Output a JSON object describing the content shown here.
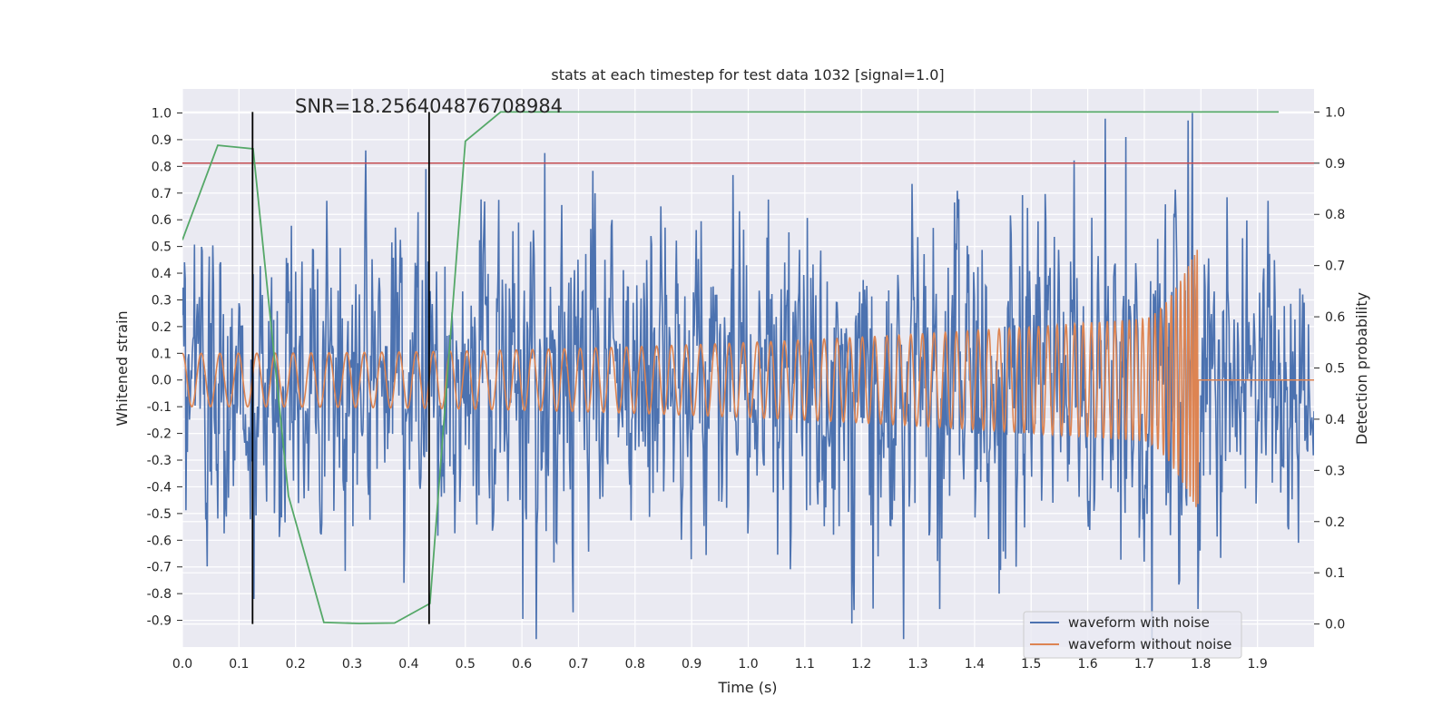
{
  "chart_data": {
    "type": "line",
    "title": "stats at each timestep for test data 1032 [signal=1.0]",
    "annotation": "SNR=18.256404876708984",
    "xlabel": "Time (s)",
    "ylabel": "Whitened strain",
    "y2label": "Detection probability",
    "xlim": [
      0.0,
      2.0
    ],
    "ylim": [
      -1.0,
      1.09
    ],
    "y2lim": [
      -0.045,
      1.045
    ],
    "x_ticks": [
      "0.0",
      "0.1",
      "0.2",
      "0.3",
      "0.4",
      "0.5",
      "0.6",
      "0.7",
      "0.8",
      "0.9",
      "1.0",
      "1.1",
      "1.2",
      "1.3",
      "1.4",
      "1.5",
      "1.6",
      "1.7",
      "1.8",
      "1.9"
    ],
    "y_ticks": [
      "1.0",
      "0.9",
      "0.8",
      "0.7",
      "0.6",
      "0.5",
      "0.4",
      "0.3",
      "0.2",
      "0.1",
      "0.0",
      "-0.1",
      "-0.2",
      "-0.3",
      "-0.4",
      "-0.5",
      "-0.6",
      "-0.7",
      "-0.8",
      "-0.9"
    ],
    "y2_ticks": [
      "1.0",
      "0.9",
      "0.8",
      "0.7",
      "0.6",
      "0.5",
      "0.4",
      "0.3",
      "0.2",
      "0.1",
      "0.0"
    ],
    "colors": {
      "noisy": "#4c72b0",
      "clean": "#dd8452",
      "probability": "#55a868",
      "threshold": "#c44e52",
      "markers": "#000000",
      "plot_bg": "#eaeaf2",
      "grid": "#ffffff"
    },
    "threshold_probability": 0.9,
    "vertical_markers_time": [
      0.124,
      0.436
    ],
    "probability_series": {
      "name": "detection probability",
      "x": [
        0.0,
        0.0625,
        0.125,
        0.1875,
        0.25,
        0.3125,
        0.375,
        0.4375,
        0.5,
        0.5625,
        1.9375
      ],
      "values": [
        0.75,
        0.935,
        0.928,
        0.25,
        0.003,
        0.001,
        0.002,
        0.04,
        0.943,
        1.0,
        1.0
      ]
    },
    "series": [
      {
        "name": "waveform with noise",
        "color": "#4c72b0",
        "seed": 1032,
        "samples": 1600,
        "envelope": {
          "x": [
            0.0,
            0.4,
            0.8,
            1.2,
            1.6,
            1.78,
            1.8,
            2.0
          ],
          "values": [
            0.27,
            0.29,
            0.29,
            0.3,
            0.3,
            0.32,
            0.3,
            0.27
          ]
        },
        "peaks": [
          {
            "x": 0.43,
            "y": 0.79
          },
          {
            "x": 0.64,
            "y": 0.85
          },
          {
            "x": 0.69,
            "y": -0.87
          },
          {
            "x": 1.667,
            "y": 0.91
          },
          {
            "x": 1.785,
            "y": 1.0
          },
          {
            "x": 1.443,
            "y": -0.8
          },
          {
            "x": 0.126,
            "y": -0.82
          }
        ]
      },
      {
        "name": "waveform without noise",
        "color": "#dd8452",
        "chirp": {
          "t_start": 0.0,
          "t_merge": 1.795,
          "f_start": 30,
          "f_end": 160,
          "amp_start": 0.1,
          "amp_at_1_7": 0.23,
          "amp_peak": 0.5,
          "post_merge_value": 0.0
        }
      }
    ],
    "legend": {
      "position": "lower-right",
      "entries": [
        "waveform with noise",
        "waveform without noise"
      ]
    }
  }
}
